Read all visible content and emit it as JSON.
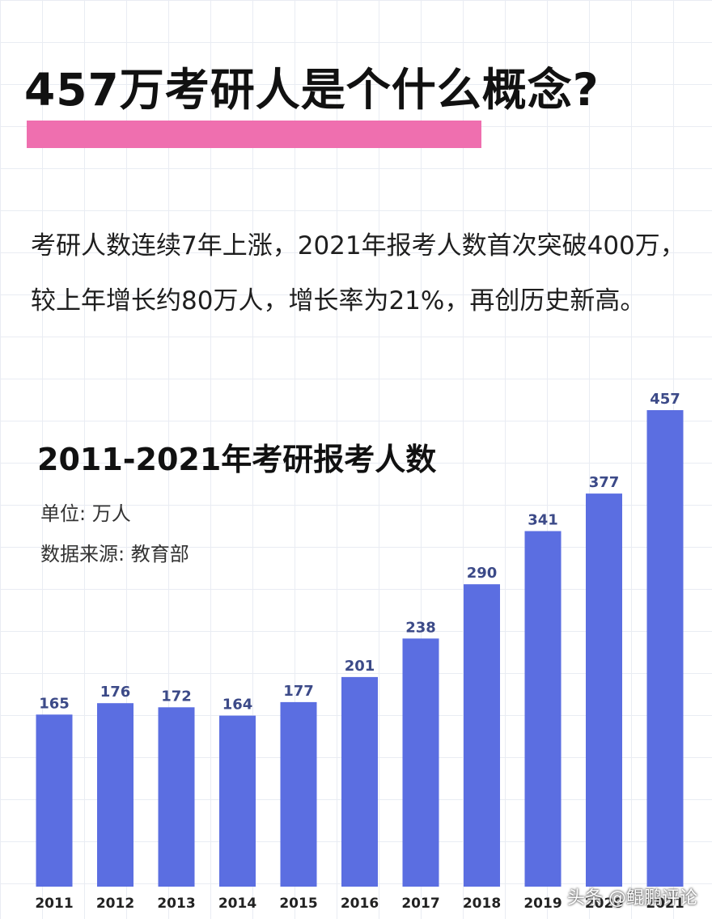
{
  "header": {
    "title": "457万考研人是个什么概念?",
    "accent_color": "#ef6faf"
  },
  "intro_text": "考研人数连续7年上涨，2021年报考人数首次突破400万，较上年增长约80万人，增长率为21%，再创历史新高。",
  "chart_data": {
    "type": "bar",
    "title": "2011-2021年考研报考人数",
    "unit_text": "单位: 万人",
    "source_text": "数据来源: 教育部",
    "categories": [
      "2011",
      "2012",
      "2013",
      "2014",
      "2015",
      "2016",
      "2017",
      "2018",
      "2019",
      "2020",
      "2021"
    ],
    "values": [
      165,
      176,
      172,
      164,
      177,
      201,
      238,
      290,
      341,
      377,
      457
    ],
    "ylim": [
      0,
      457
    ],
    "grid": false,
    "bar_color": "#5b6ee1",
    "label_color": "#3c4a88"
  },
  "watermark": "头条 @鲲鹏评论"
}
